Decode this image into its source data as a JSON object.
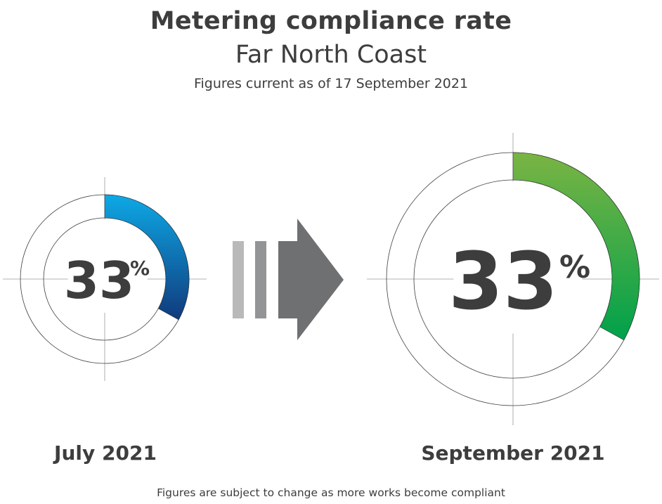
{
  "title": "Metering compliance rate",
  "subtitle": "Far North Coast",
  "note": "Figures current as of 17 September 2021",
  "footer": "Figures are subject to change as more works become compliant",
  "colors": {
    "text": "#3d3d3d",
    "july_gradient_start": "#0ea9e6",
    "july_gradient_end": "#103a7c",
    "september_gradient_start": "#7ab443",
    "september_gradient_end": "#00a14b",
    "arrow_light": "#b9b9ba",
    "arrow_mid": "#939496",
    "arrow_dark": "#6f7072"
  },
  "chart_data": {
    "type": "donut",
    "unit": "%",
    "series": [
      {
        "name": "July 2021",
        "value": 33,
        "value_label": "33",
        "unit_label": "%"
      },
      {
        "name": "September 2021",
        "value": 33,
        "value_label": "33",
        "unit_label": "%"
      }
    ]
  }
}
